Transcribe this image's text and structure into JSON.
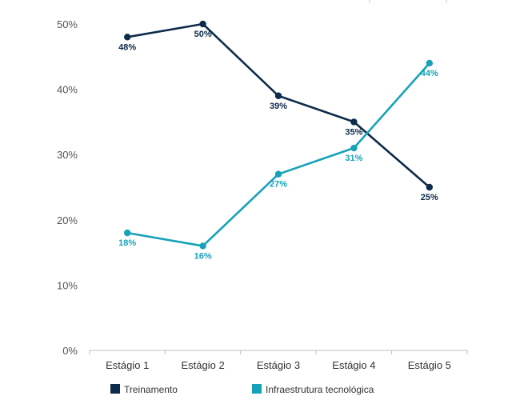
{
  "chart_data": {
    "type": "line",
    "categories": [
      "Estágio 1",
      "Estágio 2",
      "Estágio 3",
      "Estágio 4",
      "Estágio 5"
    ],
    "series": [
      {
        "name": "Treinamento",
        "values": [
          48,
          50,
          39,
          35,
          25
        ],
        "labels": [
          "48%",
          "50%",
          "39%",
          "35%",
          "25%"
        ],
        "color": "#0d2b4a"
      },
      {
        "name": "Infraestrutura tecnológica",
        "values": [
          18,
          16,
          27,
          31,
          44
        ],
        "labels": [
          "18%",
          "16%",
          "27%",
          "31%",
          "44%"
        ],
        "color": "#17a2b8"
      }
    ],
    "y_ticks": [
      "0%",
      "10%",
      "20%",
      "30%",
      "40%",
      "50%"
    ],
    "ylim": [
      0,
      50
    ],
    "grid": false,
    "legend_position": "bottom"
  }
}
